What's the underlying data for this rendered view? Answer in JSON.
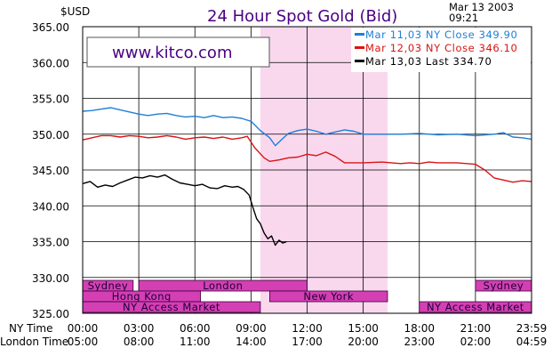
{
  "header": {
    "currency": "$USD",
    "title": "24 Hour Spot Gold (Bid)",
    "date": "Mar 13 2003",
    "time": "09:21"
  },
  "watermark": "www.kitco.com",
  "colors": {
    "mar11": "#1e7fd8",
    "mar12": "#d81414",
    "mar13": "#000000",
    "highlight": "#f9d8ee",
    "market_bar": "#d43fb4",
    "grid": "#000000"
  },
  "x_axis": {
    "row1_label": "NY Time",
    "row2_label": "London Time",
    "ny_ticks": [
      "00:00",
      "03:00",
      "06:00",
      "09:00",
      "12:00",
      "15:00",
      "18:00",
      "21:00",
      "23:59"
    ],
    "london_ticks": [
      "05:00",
      "08:00",
      "11:00",
      "14:00",
      "17:00",
      "20:00",
      "23:00",
      "02:00",
      "04:59"
    ]
  },
  "markets": [
    {
      "name": "Sydney",
      "start": 0,
      "end": 2.7
    },
    {
      "name": "London",
      "start": 3.0,
      "end": 12.0
    },
    {
      "name": "Hong Kong",
      "start": 0,
      "end": 6.3
    },
    {
      "name": "New York",
      "start": 10.0,
      "end": 16.3
    },
    {
      "name": "NY Access Market",
      "start": 0,
      "end": 9.5
    },
    {
      "name": "NY Access Market",
      "start": 18.0,
      "end": 24
    },
    {
      "name": "Sydney",
      "start": 21.0,
      "end": 30
    },
    {
      "name": "Hong Kong",
      "start": 24,
      "end": 30
    }
  ],
  "chart_data": {
    "type": "line",
    "title": "24 Hour Spot Gold (Bid)",
    "ylabel": "$USD",
    "xlabel": "NY Time",
    "ylim": [
      325,
      365
    ],
    "xlim": [
      0,
      24
    ],
    "yticks": [
      "365.00",
      "360.00",
      "355.00",
      "350.00",
      "345.00",
      "340.00",
      "335.00",
      "330.00",
      "325.00"
    ],
    "highlight_range": [
      9.5,
      16.3
    ],
    "legend": [
      {
        "label": "Mar 11,03  NY Close  349.90",
        "color": "#1e7fd8"
      },
      {
        "label": "Mar 12,03  NY Close  346.10",
        "color": "#d81414"
      },
      {
        "label": "Mar 13,03  Last  334.70",
        "color": "#000000"
      }
    ],
    "series": [
      {
        "name": "Mar 11,03",
        "x": [
          0,
          0.5,
          1,
          1.5,
          2,
          2.5,
          3,
          3.5,
          4,
          4.5,
          5,
          5.5,
          6,
          6.5,
          7,
          7.5,
          8,
          8.5,
          9,
          9.5,
          10,
          10.3,
          10.7,
          11,
          11.5,
          12,
          12.5,
          13,
          13.5,
          14,
          14.5,
          15,
          16,
          17,
          18,
          19,
          20,
          21,
          22,
          22.5,
          23,
          23.5,
          24
        ],
        "values": [
          353.2,
          353.3,
          353.5,
          353.7,
          353.4,
          353.1,
          352.8,
          352.6,
          352.8,
          352.9,
          352.6,
          352.4,
          352.5,
          352.3,
          352.6,
          352.3,
          352.4,
          352.2,
          351.8,
          350.5,
          349.5,
          348.4,
          349.4,
          350.1,
          350.5,
          350.7,
          350.4,
          350.0,
          350.3,
          350.6,
          350.4,
          350.0,
          350.0,
          350.0,
          350.1,
          349.9,
          350.0,
          349.8,
          350.0,
          350.2,
          349.6,
          349.5,
          349.3
        ]
      },
      {
        "name": "Mar 12,03",
        "x": [
          0,
          0.5,
          1,
          1.5,
          2,
          2.5,
          3,
          3.5,
          4,
          4.5,
          5,
          5.5,
          6,
          6.5,
          7,
          7.5,
          8,
          8.5,
          8.8,
          9.2,
          9.7,
          10,
          10.5,
          11,
          11.5,
          12,
          12.5,
          13,
          13.5,
          14,
          15,
          16,
          17,
          17.5,
          18,
          18.5,
          19,
          20,
          21,
          21.5,
          22,
          22.5,
          23,
          23.5,
          24
        ],
        "values": [
          349.2,
          349.5,
          349.8,
          349.8,
          349.6,
          349.8,
          349.7,
          349.5,
          349.6,
          349.8,
          349.6,
          349.3,
          349.5,
          349.6,
          349.4,
          349.6,
          349.3,
          349.5,
          349.7,
          348.1,
          346.7,
          346.2,
          346.4,
          346.7,
          346.8,
          347.2,
          347.0,
          347.5,
          346.9,
          346.0,
          346.0,
          346.1,
          345.9,
          346.0,
          345.9,
          346.1,
          346.0,
          346.0,
          345.8,
          345.0,
          343.9,
          343.6,
          343.3,
          343.5,
          343.4
        ]
      },
      {
        "name": "Mar 13,03",
        "x": [
          0,
          0.4,
          0.8,
          1.2,
          1.6,
          2,
          2.4,
          2.8,
          3.2,
          3.6,
          4,
          4.4,
          4.8,
          5.2,
          5.6,
          6,
          6.4,
          6.8,
          7.2,
          7.6,
          8,
          8.3,
          8.6,
          8.9,
          9.1,
          9.3,
          9.5,
          9.7,
          9.9,
          10.1,
          10.3,
          10.5,
          10.7,
          10.9
        ],
        "values": [
          343.1,
          343.4,
          342.6,
          342.9,
          342.7,
          343.2,
          343.6,
          344.0,
          343.9,
          344.2,
          344.0,
          344.3,
          343.7,
          343.2,
          343.0,
          342.8,
          343.0,
          342.5,
          342.4,
          342.8,
          342.6,
          342.7,
          342.3,
          341.5,
          339.8,
          338.2,
          337.5,
          336.2,
          335.4,
          335.8,
          334.5,
          335.2,
          334.8,
          335.0
        ]
      }
    ]
  }
}
